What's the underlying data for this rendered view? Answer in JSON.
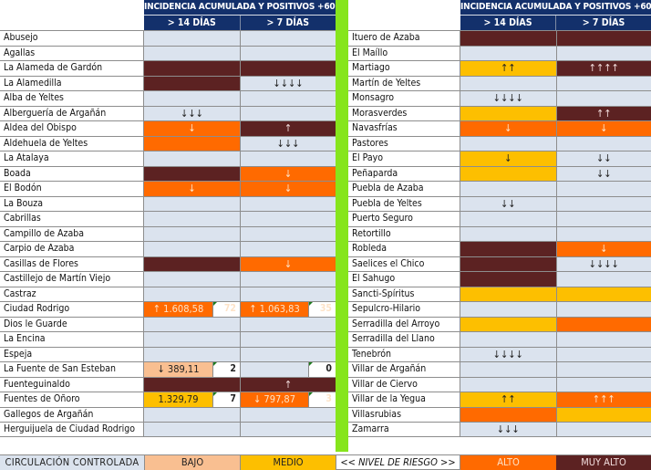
{
  "header": {
    "title": "INCIDENCIA ACUMULADA Y POSITIVOS +60 AÑOS",
    "col14": "> 14 DÍAS",
    "col7": "> 7 DÍAS"
  },
  "colors": {
    "none": "#dbe3ee",
    "bajo": "#f9bf91",
    "medio": "#fdbf00",
    "alto": "#ff6a00",
    "muy_alto": "#5c2222",
    "header_blue": "#13306b",
    "separator_green": "#86e51c"
  },
  "left": [
    {
      "name": "Abusejo",
      "d14": {
        "level": "none",
        "text": ""
      },
      "d7": {
        "level": "none",
        "text": ""
      }
    },
    {
      "name": "Agallas",
      "d14": {
        "level": "none",
        "text": ""
      },
      "d7": {
        "level": "none",
        "text": ""
      }
    },
    {
      "name": "La Alameda de Gardón",
      "d14": {
        "level": "muyalto",
        "text": ""
      },
      "d7": {
        "level": "muyalto",
        "text": ""
      }
    },
    {
      "name": "La Alamedilla",
      "d14": {
        "level": "muyalto",
        "text": ""
      },
      "d7": {
        "level": "none",
        "text": "↓↓↓↓"
      }
    },
    {
      "name": "Alba de Yeltes",
      "d14": {
        "level": "none",
        "text": ""
      },
      "d7": {
        "level": "none",
        "text": ""
      }
    },
    {
      "name": "Alberguería de Argañán",
      "d14": {
        "level": "none",
        "text": "↓↓↓"
      },
      "d7": {
        "level": "none",
        "text": ""
      }
    },
    {
      "name": "Aldea del Obispo",
      "d14": {
        "level": "alto",
        "text": "↓"
      },
      "d7": {
        "level": "muyalto",
        "text": "↑"
      }
    },
    {
      "name": "Aldehuela de Yeltes",
      "d14": {
        "level": "alto",
        "text": ""
      },
      "d7": {
        "level": "none",
        "text": "↓↓↓"
      }
    },
    {
      "name": "La Atalaya",
      "d14": {
        "level": "none",
        "text": ""
      },
      "d7": {
        "level": "none",
        "text": ""
      }
    },
    {
      "name": "Boada",
      "d14": {
        "level": "muyalto",
        "text": ""
      },
      "d7": {
        "level": "alto",
        "text": "↓"
      }
    },
    {
      "name": "El Bodón",
      "d14": {
        "level": "alto",
        "text": "↓"
      },
      "d7": {
        "level": "alto",
        "text": "↓"
      }
    },
    {
      "name": "La Bouza",
      "d14": {
        "level": "none",
        "text": ""
      },
      "d7": {
        "level": "none",
        "text": ""
      }
    },
    {
      "name": "Cabrillas",
      "d14": {
        "level": "none",
        "text": ""
      },
      "d7": {
        "level": "none",
        "text": ""
      }
    },
    {
      "name": "Campillo de Azaba",
      "d14": {
        "level": "none",
        "text": ""
      },
      "d7": {
        "level": "none",
        "text": ""
      }
    },
    {
      "name": "Carpio de Azaba",
      "d14": {
        "level": "none",
        "text": ""
      },
      "d7": {
        "level": "none",
        "text": ""
      }
    },
    {
      "name": "Casillas de Flores",
      "d14": {
        "level": "muyalto",
        "text": ""
      },
      "d7": {
        "level": "alto",
        "text": "↓"
      }
    },
    {
      "name": "Castillejo de Martín Viejo",
      "d14": {
        "level": "none",
        "text": ""
      },
      "d7": {
        "level": "none",
        "text": ""
      }
    },
    {
      "name": "Castraz",
      "d14": {
        "level": "none",
        "text": ""
      },
      "d7": {
        "level": "none",
        "text": ""
      }
    },
    {
      "name": "Ciudad Rodrigo",
      "d14": {
        "level": "alto",
        "text": "↑ 1.608,58",
        "count": "72"
      },
      "d7": {
        "level": "alto",
        "text": "↑ 1.063,83",
        "count": "35"
      }
    },
    {
      "name": "Dios le Guarde",
      "d14": {
        "level": "none",
        "text": ""
      },
      "d7": {
        "level": "none",
        "text": ""
      }
    },
    {
      "name": "La Encina",
      "d14": {
        "level": "none",
        "text": ""
      },
      "d7": {
        "level": "none",
        "text": ""
      }
    },
    {
      "name": "Espeja",
      "d14": {
        "level": "none",
        "text": ""
      },
      "d7": {
        "level": "none",
        "text": ""
      }
    },
    {
      "name": "La Fuente de San Esteban",
      "d14": {
        "level": "bajo",
        "text": "↓ 389,11",
        "count": "2"
      },
      "d7": {
        "level": "none",
        "text": "",
        "count": "0"
      }
    },
    {
      "name": "Fuenteguinaldo",
      "d14": {
        "level": "muyalto",
        "text": ""
      },
      "d7": {
        "level": "muyalto",
        "text": "↑"
      }
    },
    {
      "name": "Fuentes de Oñoro",
      "d14": {
        "level": "medio",
        "text": "1.329,79",
        "count": "7"
      },
      "d7": {
        "level": "alto",
        "text": "↓ 797,87",
        "count": "3"
      }
    },
    {
      "name": "Gallegos de Argañán",
      "d14": {
        "level": "none",
        "text": ""
      },
      "d7": {
        "level": "none",
        "text": ""
      }
    },
    {
      "name": "Herguijuela de Ciudad Rodrigo",
      "d14": {
        "level": "none",
        "text": ""
      },
      "d7": {
        "level": "none",
        "text": ""
      }
    }
  ],
  "right": [
    {
      "name": "Ituero de Azaba",
      "d14": {
        "level": "muyalto",
        "text": ""
      },
      "d7": {
        "level": "muyalto",
        "text": ""
      }
    },
    {
      "name": "El Maíllo",
      "d14": {
        "level": "none",
        "text": ""
      },
      "d7": {
        "level": "none",
        "text": ""
      }
    },
    {
      "name": "Martiago",
      "d14": {
        "level": "medio",
        "text": "↑↑"
      },
      "d7": {
        "level": "muyalto",
        "text": "↑↑↑↑"
      }
    },
    {
      "name": "Martín de Yeltes",
      "d14": {
        "level": "none",
        "text": ""
      },
      "d7": {
        "level": "none",
        "text": ""
      }
    },
    {
      "name": "Monsagro",
      "d14": {
        "level": "none",
        "text": "↓↓↓↓"
      },
      "d7": {
        "level": "none",
        "text": ""
      }
    },
    {
      "name": "Morasverdes",
      "d14": {
        "level": "medio",
        "text": ""
      },
      "d7": {
        "level": "muyalto",
        "text": "↑↑"
      }
    },
    {
      "name": "Navasfrías",
      "d14": {
        "level": "alto",
        "text": "↓"
      },
      "d7": {
        "level": "alto",
        "text": "↓"
      }
    },
    {
      "name": "Pastores",
      "d14": {
        "level": "none",
        "text": ""
      },
      "d7": {
        "level": "none",
        "text": ""
      }
    },
    {
      "name": "El Payo",
      "d14": {
        "level": "medio",
        "text": "↓"
      },
      "d7": {
        "level": "none",
        "text": "↓↓"
      }
    },
    {
      "name": "Peñaparda",
      "d14": {
        "level": "medio",
        "text": ""
      },
      "d7": {
        "level": "none",
        "text": "↓↓"
      }
    },
    {
      "name": "Puebla de Azaba",
      "d14": {
        "level": "none",
        "text": ""
      },
      "d7": {
        "level": "none",
        "text": ""
      }
    },
    {
      "name": "Puebla de Yeltes",
      "d14": {
        "level": "none",
        "text": "↓↓"
      },
      "d7": {
        "level": "none",
        "text": ""
      }
    },
    {
      "name": "Puerto Seguro",
      "d14": {
        "level": "none",
        "text": ""
      },
      "d7": {
        "level": "none",
        "text": ""
      }
    },
    {
      "name": "Retortillo",
      "d14": {
        "level": "none",
        "text": ""
      },
      "d7": {
        "level": "none",
        "text": ""
      }
    },
    {
      "name": "Robleda",
      "d14": {
        "level": "muyalto",
        "text": ""
      },
      "d7": {
        "level": "alto",
        "text": "↓"
      }
    },
    {
      "name": "Saelices el Chico",
      "d14": {
        "level": "muyalto",
        "text": ""
      },
      "d7": {
        "level": "none",
        "text": "↓↓↓↓"
      }
    },
    {
      "name": "El Sahugo",
      "d14": {
        "level": "muyalto",
        "text": ""
      },
      "d7": {
        "level": "none",
        "text": ""
      }
    },
    {
      "name": "Sancti-Spíritus",
      "d14": {
        "level": "medio",
        "text": ""
      },
      "d7": {
        "level": "medio",
        "text": ""
      }
    },
    {
      "name": "Sepulcro-Hilario",
      "d14": {
        "level": "none",
        "text": ""
      },
      "d7": {
        "level": "none",
        "text": ""
      }
    },
    {
      "name": "Serradilla del Arroyo",
      "d14": {
        "level": "medio",
        "text": ""
      },
      "d7": {
        "level": "alto",
        "text": ""
      }
    },
    {
      "name": "Serradilla del Llano",
      "d14": {
        "level": "none",
        "text": ""
      },
      "d7": {
        "level": "none",
        "text": ""
      }
    },
    {
      "name": "Tenebrón",
      "d14": {
        "level": "none",
        "text": "↓↓↓↓"
      },
      "d7": {
        "level": "none",
        "text": ""
      }
    },
    {
      "name": "Villar de Argañán",
      "d14": {
        "level": "none",
        "text": ""
      },
      "d7": {
        "level": "none",
        "text": ""
      }
    },
    {
      "name": "Villar de Ciervo",
      "d14": {
        "level": "none",
        "text": ""
      },
      "d7": {
        "level": "none",
        "text": ""
      }
    },
    {
      "name": "Villar de la Yegua",
      "d14": {
        "level": "medio",
        "text": "↑↑"
      },
      "d7": {
        "level": "alto",
        "text": "↑↑↑"
      }
    },
    {
      "name": "Villasrubias",
      "d14": {
        "level": "alto",
        "text": ""
      },
      "d7": {
        "level": "medio",
        "text": ""
      }
    },
    {
      "name": "Zamarra",
      "d14": {
        "level": "none",
        "text": "↓↓↓"
      },
      "d7": {
        "level": "none",
        "text": ""
      }
    }
  ],
  "legend": {
    "circulacion": "CIRCULACIÓN CONTROLADA",
    "bajo": "BAJO",
    "medio": "MEDIO",
    "nivel": "<< NIVEL DE RIESGO >>",
    "alto": "ALTO",
    "muy_alto": "MUY ALTO"
  }
}
